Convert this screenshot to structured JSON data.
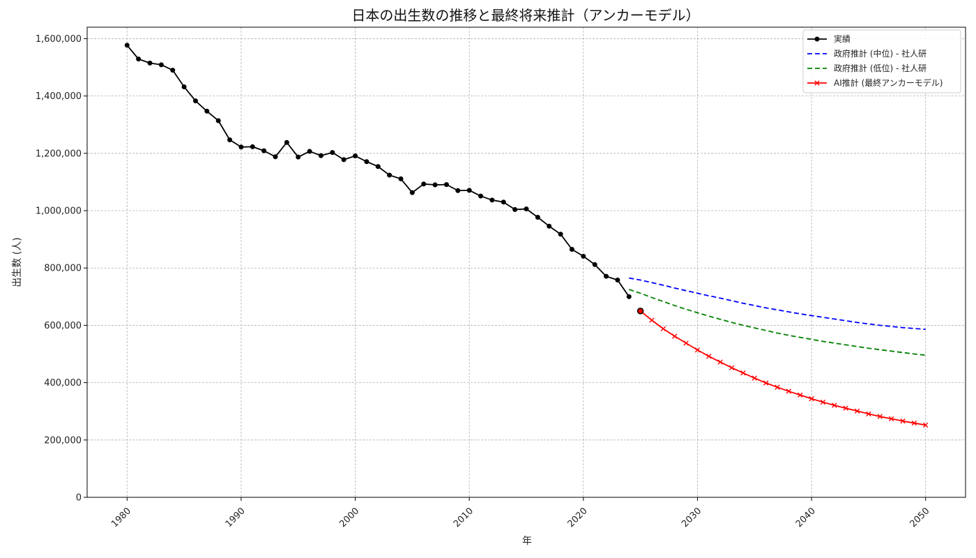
{
  "chart_data": {
    "type": "line",
    "title": "日本の出生数の推移と最終将来推計（アンカーモデル）",
    "xlabel": "年",
    "ylabel": "出生数 (人)",
    "xlim": [
      1976.5,
      2053.5
    ],
    "ylim": [
      0,
      1640000
    ],
    "x_ticks": [
      1980,
      1990,
      2000,
      2010,
      2020,
      2030,
      2040,
      2050
    ],
    "y_ticks": [
      0,
      200000,
      400000,
      600000,
      800000,
      1000000,
      1200000,
      1400000,
      1600000
    ],
    "y_tick_labels": [
      "0",
      "200,000",
      "400,000",
      "600,000",
      "800,000",
      "1,000,000",
      "1,200,000",
      "1,400,000",
      "1,600,000"
    ],
    "grid": true,
    "legend_position": "top-right",
    "series": [
      {
        "name": "実績",
        "color": "#000000",
        "line_style": "solid",
        "marker": "circle",
        "x": [
          1980,
          1981,
          1982,
          1983,
          1984,
          1985,
          1986,
          1987,
          1988,
          1989,
          1990,
          1991,
          1992,
          1993,
          1994,
          1995,
          1996,
          1997,
          1998,
          1999,
          2000,
          2001,
          2002,
          2003,
          2004,
          2005,
          2006,
          2007,
          2008,
          2009,
          2010,
          2011,
          2012,
          2013,
          2014,
          2015,
          2016,
          2017,
          2018,
          2019,
          2020,
          2021,
          2022,
          2023,
          2024
        ],
        "values": [
          1577000,
          1529000,
          1515000,
          1509000,
          1490000,
          1432000,
          1383000,
          1347000,
          1314000,
          1247000,
          1222000,
          1223000,
          1209000,
          1188000,
          1238000,
          1187000,
          1207000,
          1192000,
          1203000,
          1178000,
          1191000,
          1171000,
          1154000,
          1124000,
          1111000,
          1063000,
          1093000,
          1090000,
          1091000,
          1070000,
          1071000,
          1051000,
          1037000,
          1030000,
          1004000,
          1006000,
          977000,
          946000,
          918000,
          865000,
          841000,
          812000,
          771000,
          758000,
          700000
        ]
      },
      {
        "name": "政府推計 (中位) - 社人研",
        "color": "#0000ff",
        "line_style": "dashed",
        "marker": "none",
        "x": [
          2024,
          2025,
          2026,
          2027,
          2028,
          2029,
          2030,
          2031,
          2032,
          2033,
          2034,
          2035,
          2036,
          2037,
          2038,
          2039,
          2040,
          2041,
          2042,
          2043,
          2044,
          2045,
          2046,
          2047,
          2048,
          2049,
          2050
        ],
        "values": [
          765000,
          758000,
          749000,
          740000,
          730000,
          721000,
          712000,
          703000,
          695000,
          686000,
          677000,
          669000,
          661000,
          654000,
          647000,
          640000,
          634000,
          628000,
          622000,
          616000,
          610000,
          605000,
          600000,
          596000,
          592000,
          589000,
          586000
        ]
      },
      {
        "name": "政府推計 (低位) - 社人研",
        "color": "#008000",
        "line_style": "dashed",
        "marker": "none",
        "x": [
          2024,
          2025,
          2026,
          2027,
          2028,
          2029,
          2030,
          2031,
          2032,
          2033,
          2034,
          2035,
          2036,
          2037,
          2038,
          2039,
          2040,
          2041,
          2042,
          2043,
          2044,
          2045,
          2046,
          2047,
          2048,
          2049,
          2050
        ],
        "values": [
          725000,
          712000,
          697000,
          683000,
          669000,
          656000,
          644000,
          632000,
          621000,
          610000,
          600000,
          591000,
          582000,
          573000,
          565000,
          558000,
          551000,
          544000,
          538000,
          532000,
          526000,
          520000,
          515000,
          510000,
          505000,
          500000,
          496000
        ]
      },
      {
        "name": "AI推計 (最終アンカーモデル)",
        "color": "#ff0000",
        "line_style": "solid",
        "marker": "x",
        "x": [
          2025,
          2026,
          2027,
          2028,
          2029,
          2030,
          2031,
          2032,
          2033,
          2034,
          2035,
          2036,
          2037,
          2038,
          2039,
          2040,
          2041,
          2042,
          2043,
          2044,
          2045,
          2046,
          2047,
          2048,
          2049,
          2050
        ],
        "values": [
          650000,
          618000,
          588000,
          562000,
          538000,
          514000,
          492000,
          472000,
          452000,
          434000,
          416000,
          399000,
          384000,
          370000,
          357000,
          344000,
          332000,
          321000,
          311000,
          301000,
          291000,
          282000,
          274000,
          266000,
          259000,
          252000
        ]
      }
    ],
    "highlight_point": {
      "x": 2025,
      "y": 650000,
      "edge_color": "#000000",
      "fill_color": "#ff0000"
    }
  }
}
